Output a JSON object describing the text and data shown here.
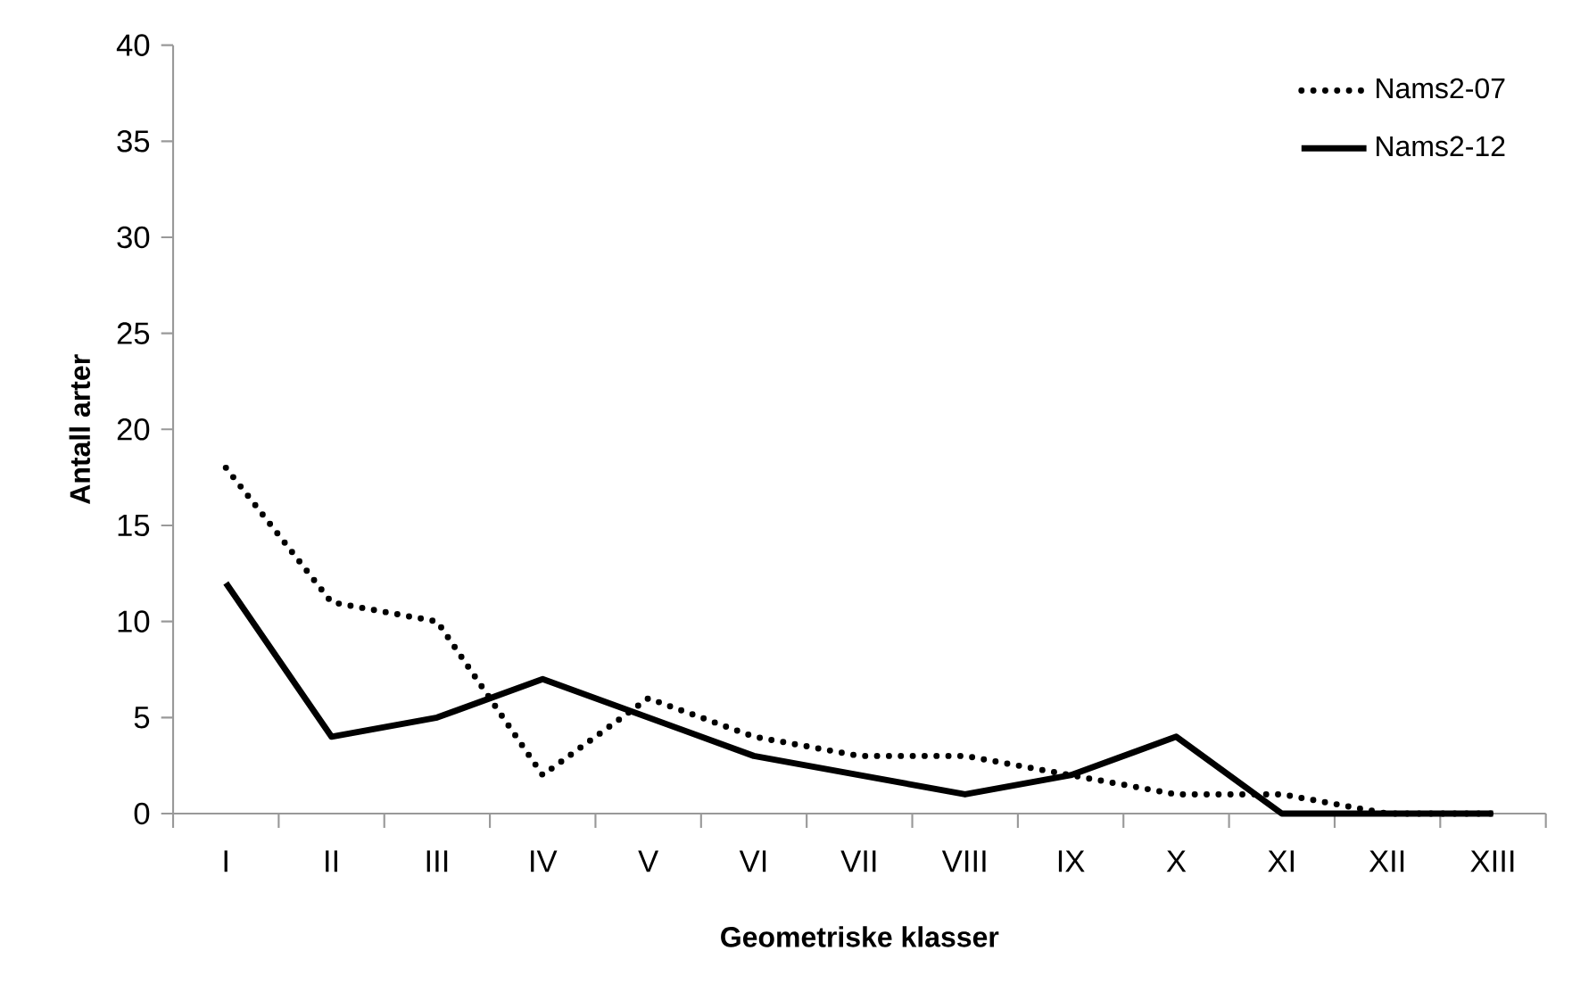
{
  "chart_data": {
    "type": "line",
    "xlabel": "Geometriske klasser",
    "ylabel": "Antall arter",
    "categories": [
      "I",
      "II",
      "III",
      "IV",
      "V",
      "VI",
      "VII",
      "VIII",
      "IX",
      "X",
      "XI",
      "XII",
      "XIII"
    ],
    "series": [
      {
        "name": "Nams2-07",
        "color": "#000000",
        "line_style": "dotted",
        "values": [
          18,
          11,
          10,
          2,
          6,
          4,
          3,
          3,
          2,
          1,
          1,
          0,
          0
        ]
      },
      {
        "name": "Nams2-12",
        "color": "#000000",
        "line_style": "solid",
        "values": [
          12,
          4,
          5,
          7,
          5,
          3,
          2,
          1,
          2,
          4,
          0,
          0,
          0
        ]
      }
    ],
    "ylim": [
      0,
      40
    ],
    "yticks": [
      0,
      5,
      10,
      15,
      20,
      25,
      30,
      35,
      40
    ],
    "grid": false,
    "legend": "top right",
    "marker": "none"
  }
}
